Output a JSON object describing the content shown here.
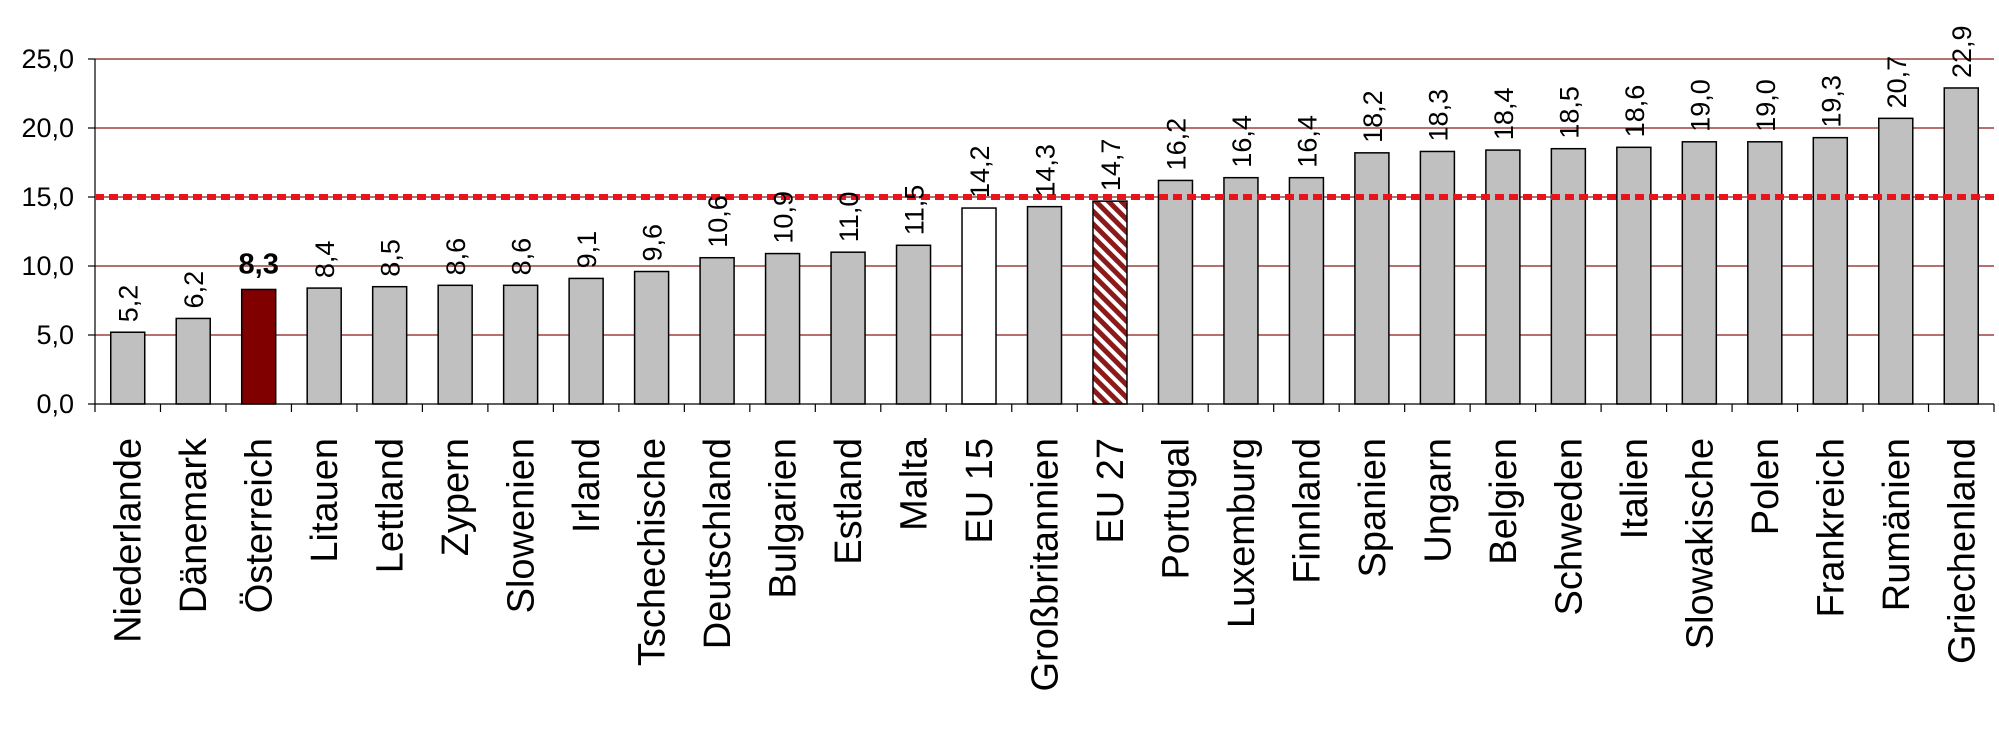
{
  "chart_data": {
    "type": "bar",
    "categories": [
      "Niederlande",
      "Dänemark",
      "Österreich",
      "Litauen",
      "Lettland",
      "Zypern",
      "Slowenien",
      "Irland",
      "Tschechische",
      "Deutschland",
      "Bulgarien",
      "Estland",
      "Malta",
      "EU 15",
      "Großbritannien",
      "EU 27",
      "Portugal",
      "Luxemburg",
      "Finnland",
      "Spanien",
      "Ungarn",
      "Belgien",
      "Schweden",
      "Italien",
      "Slowakische",
      "Polen",
      "Frankreich",
      "Rumänien",
      "Griechenland"
    ],
    "values": [
      5.2,
      6.2,
      8.3,
      8.4,
      8.5,
      8.6,
      8.6,
      9.1,
      9.6,
      10.6,
      10.9,
      11.0,
      11.5,
      14.2,
      14.3,
      14.7,
      16.2,
      16.4,
      16.4,
      18.2,
      18.3,
      18.4,
      18.5,
      18.6,
      19.0,
      19.0,
      19.3,
      20.7,
      22.9
    ],
    "value_labels": [
      "5,2",
      "6,2",
      "8,3",
      "8,4",
      "8,5",
      "8,6",
      "8,6",
      "9,1",
      "9,6",
      "10,6",
      "10,9",
      "11,0",
      "11,5",
      "14,2",
      "14,3",
      "14,7",
      "16,2",
      "16,4",
      "16,4",
      "18,2",
      "18,3",
      "18,4",
      "18,5",
      "18,6",
      "19,0",
      "19,0",
      "19,3",
      "20,7",
      "22,9"
    ],
    "bar_styles": [
      "gray",
      "gray",
      "highlight",
      "gray",
      "gray",
      "gray",
      "gray",
      "gray",
      "gray",
      "gray",
      "gray",
      "gray",
      "gray",
      "white",
      "gray",
      "hatched",
      "gray",
      "gray",
      "gray",
      "gray",
      "gray",
      "gray",
      "gray",
      "gray",
      "gray",
      "gray",
      "gray",
      "gray",
      "gray"
    ],
    "ylim": [
      0,
      25
    ],
    "yticks": [
      0,
      5,
      10,
      15,
      20,
      25
    ],
    "ytick_labels": [
      "0,0",
      "5,0",
      "10,0",
      "15,0",
      "20,0",
      "25,0"
    ],
    "reference_line": 15,
    "grid": true,
    "title": "",
    "xlabel": "",
    "ylabel": "",
    "colors": {
      "bar_gray": "#c0c0c0",
      "bar_highlight": "#800000",
      "bar_white": "#ffffff",
      "hatch": "#8b1a1a",
      "gridline": "#8b1a1a",
      "reference_line": "#e8141b"
    }
  }
}
